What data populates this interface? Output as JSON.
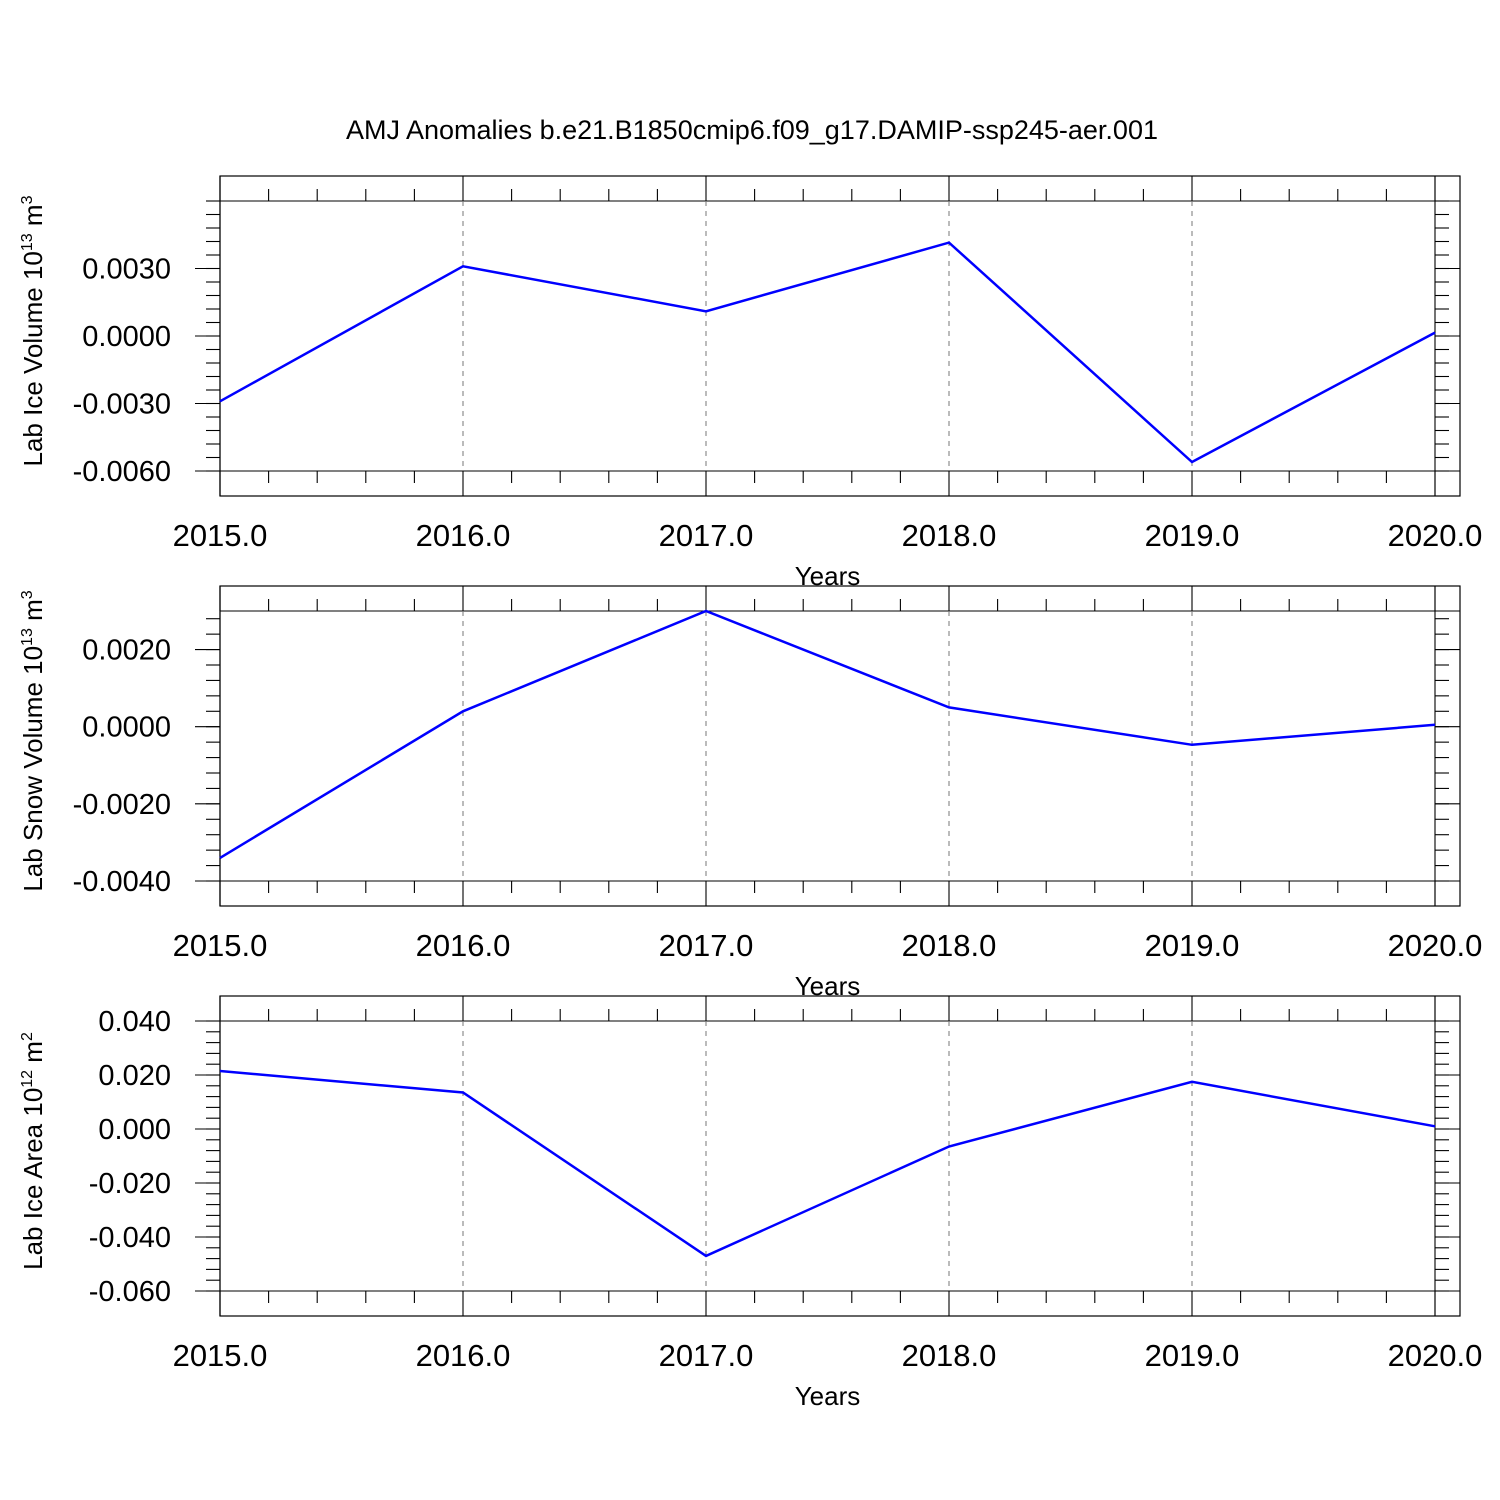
{
  "title": "AMJ Anomalies b.e21.B1850cmip6.f09_g17.DAMIP-ssp245-aer.001",
  "series_color": "#0000ff",
  "chart_data": [
    {
      "type": "line",
      "title": "AMJ Anomalies b.e21.B1850cmip6.f09_g17.DAMIP-ssp245-aer.001",
      "xlabel": "Years",
      "ylabel": "Lab Ice Volume 10^13 m^3",
      "ylabel_parts": {
        "prefix": "Lab Ice Volume 10",
        "exp": "13",
        "unit": " m",
        "unit_exp": "3"
      },
      "x": [
        2015.0,
        2016.0,
        2017.0,
        2018.0,
        2019.0,
        2020.0
      ],
      "y": [
        -0.0029,
        0.0031,
        0.0011,
        0.00415,
        -0.0056,
        0.00015
      ],
      "xlim": [
        2015.0,
        2020.0
      ],
      "ylim": [
        -0.006,
        0.006
      ],
      "x_ticks": [
        "2015.0",
        "2016.0",
        "2017.0",
        "2018.0",
        "2019.0",
        "2020.0"
      ],
      "y_ticks": [
        {
          "value": 0.003,
          "label": "0.0030"
        },
        {
          "value": 0.0,
          "label": "0.0000"
        },
        {
          "value": -0.003,
          "label": "-0.0030"
        },
        {
          "value": -0.006,
          "label": "-0.0060"
        }
      ],
      "y_minor_step": 0.0006,
      "grid": "vertical dashed at major x ticks"
    },
    {
      "type": "line",
      "xlabel": "Years",
      "ylabel": "Lab Snow Volume 10^13 m^3",
      "ylabel_parts": {
        "prefix": "Lab Snow Volume 10",
        "exp": "13",
        "unit": " m",
        "unit_exp": "3"
      },
      "x": [
        2015.0,
        2016.0,
        2017.0,
        2018.0,
        2019.0,
        2020.0
      ],
      "y": [
        -0.0034,
        0.0004,
        0.003,
        0.0005,
        -0.00047,
        5e-05
      ],
      "xlim": [
        2015.0,
        2020.0
      ],
      "ylim": [
        -0.004,
        0.003
      ],
      "x_ticks": [
        "2015.0",
        "2016.0",
        "2017.0",
        "2018.0",
        "2019.0",
        "2020.0"
      ],
      "y_ticks": [
        {
          "value": 0.002,
          "label": "0.0020"
        },
        {
          "value": 0.0,
          "label": "0.0000"
        },
        {
          "value": -0.002,
          "label": "-0.0020"
        },
        {
          "value": -0.004,
          "label": "-0.0040"
        }
      ],
      "y_minor_step": 0.0004,
      "grid": "vertical dashed at major x ticks"
    },
    {
      "type": "line",
      "xlabel": "Years",
      "ylabel": "Lab Ice Area 10^12 m^2",
      "ylabel_parts": {
        "prefix": "Lab Ice Area 10",
        "exp": "12",
        "unit": " m",
        "unit_exp": "2"
      },
      "x": [
        2015.0,
        2016.0,
        2017.0,
        2018.0,
        2019.0,
        2020.0
      ],
      "y": [
        0.0215,
        0.0135,
        -0.047,
        -0.0065,
        0.0175,
        0.001
      ],
      "xlim": [
        2015.0,
        2020.0
      ],
      "ylim": [
        -0.06,
        0.04
      ],
      "x_ticks": [
        "2015.0",
        "2016.0",
        "2017.0",
        "2018.0",
        "2019.0",
        "2020.0"
      ],
      "y_ticks": [
        {
          "value": 0.04,
          "label": "0.040"
        },
        {
          "value": 0.02,
          "label": "0.020"
        },
        {
          "value": 0.0,
          "label": "0.000"
        },
        {
          "value": -0.02,
          "label": "-0.020"
        },
        {
          "value": -0.04,
          "label": "-0.040"
        },
        {
          "value": -0.06,
          "label": "-0.060"
        }
      ],
      "y_minor_step": 0.004,
      "grid": "vertical dashed at major x ticks"
    }
  ]
}
